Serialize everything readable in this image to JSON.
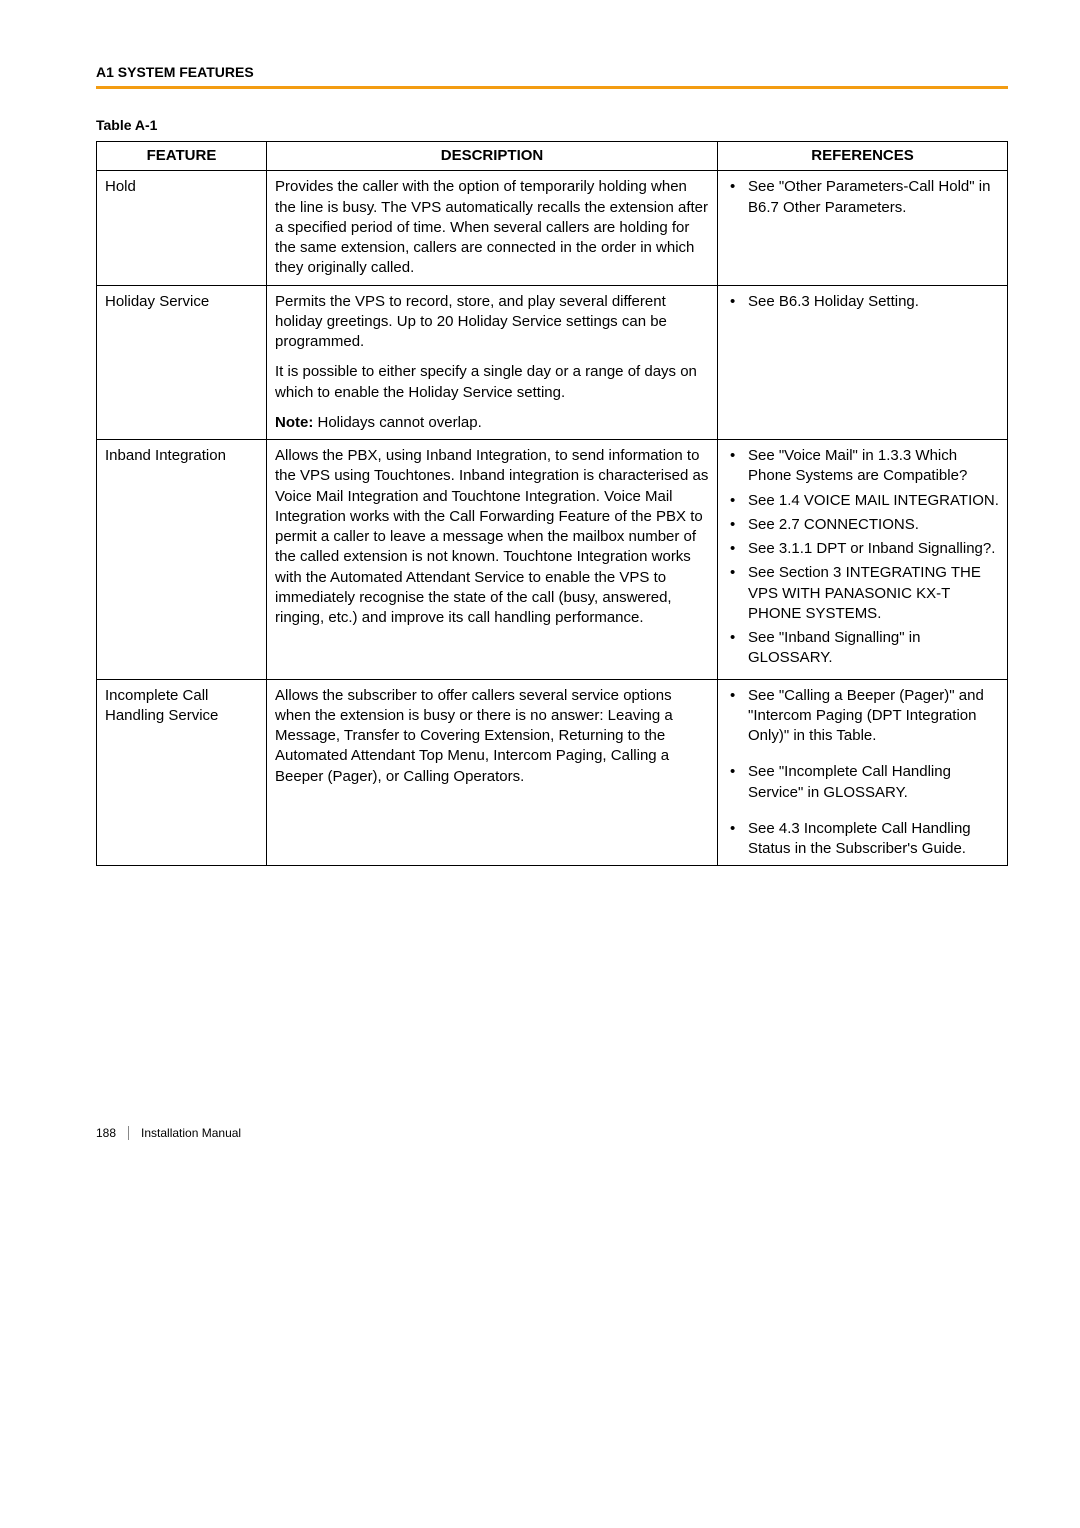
{
  "header": {
    "section_heading": "A1 SYSTEM FEATURES",
    "table_label": "Table A-1"
  },
  "table": {
    "columns": [
      "FEATURE",
      "DESCRIPTION",
      "REFERENCES"
    ],
    "rows": [
      {
        "feature": "Hold",
        "description_paragraphs": [
          "Provides the caller with the option of temporarily holding when the line is busy. The VPS automatically recalls the extension after a specified period of time. When several callers are holding for the same extension, callers are connected in the order in which they originally called."
        ],
        "note": null,
        "references": [
          "See \"Other Parameters-Call Hold\" in B6.7 Other Parameters."
        ],
        "references_spaced": false
      },
      {
        "feature": "Holiday Service",
        "description_paragraphs": [
          "Permits the VPS to record, store, and play several different holiday greetings. Up to 20 Holiday Service settings can be programmed.",
          "It is possible to either specify a single day or a range of days on which to enable the Holiday Service setting."
        ],
        "note": "Holidays cannot overlap.",
        "references": [
          "See B6.3 Holiday Setting."
        ],
        "references_spaced": false
      },
      {
        "feature": "Inband Integration",
        "description_paragraphs": [
          "Allows the PBX, using Inband Integration, to send information to the VPS using Touchtones. Inband integration is characterised as Voice Mail Integration and Touchtone Integration. Voice Mail Integration works with the Call Forwarding Feature of the PBX to permit a caller to leave a message when the mailbox number of the called extension is not known. Touchtone Integration works with the Automated Attendant Service to enable the VPS to immediately recognise the state of the call (busy, answered, ringing, etc.) and improve its call handling performance."
        ],
        "note": null,
        "references": [
          "See \"Voice Mail\" in 1.3.3 Which Phone Systems are Compatible?",
          "See 1.4 VOICE MAIL INTEGRATION.",
          "See 2.7 CONNECTIONS.",
          "See 3.1.1 DPT or Inband Signalling?.",
          "See Section 3 INTEGRATING THE VPS WITH PANASONIC KX-T PHONE SYSTEMS.",
          "See \"Inband Signalling\" in GLOSSARY."
        ],
        "references_spaced": false
      },
      {
        "feature": "Incomplete Call Handling Service",
        "description_paragraphs": [
          "Allows the subscriber to offer callers several service options when the extension is busy or there is no answer: Leaving a Message, Transfer to Covering Extension, Returning to the Automated Attendant Top Menu, Intercom Paging, Calling a Beeper (Pager), or Calling Operators."
        ],
        "note": null,
        "references": [
          "See \"Calling a Beeper (Pager)\" and \"Intercom Paging (DPT Integration Only)\" in this Table.",
          "See \"Incomplete Call Handling Service\" in GLOSSARY.",
          "See 4.3 Incomplete Call Handling Status in the Subscriber's Guide."
        ],
        "references_spaced": true
      }
    ]
  },
  "footer": {
    "page_number": "188",
    "doc_title": "Installation Manual"
  },
  "note_label": "Note:"
}
